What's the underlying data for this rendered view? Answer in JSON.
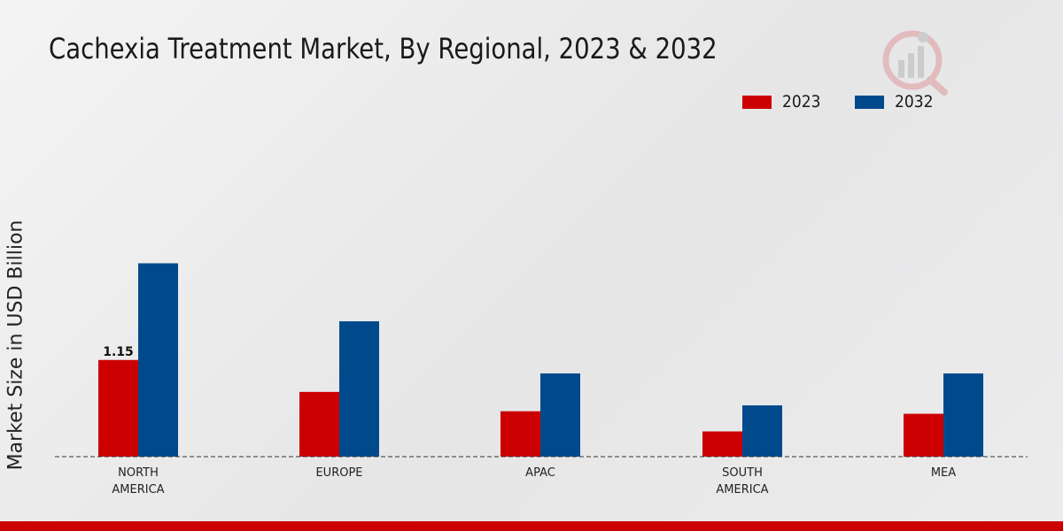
{
  "chart_data": {
    "type": "bar",
    "title": "Cachexia Treatment Market, By Regional, 2023 & 2032",
    "xlabel": "",
    "ylabel": "Market Size in USD Billion",
    "categories": [
      [
        "NORTH",
        "AMERICA"
      ],
      [
        "EUROPE"
      ],
      [
        "APAC"
      ],
      [
        "SOUTH",
        "AMERICA"
      ],
      [
        "MEA"
      ]
    ],
    "series": [
      {
        "name": "2023",
        "color": "#cc0000",
        "values": [
          1.15,
          0.77,
          0.54,
          0.3,
          0.51
        ]
      },
      {
        "name": "2032",
        "color": "#004a8c",
        "values": [
          2.3,
          1.61,
          0.99,
          0.61,
          0.99
        ]
      }
    ],
    "data_labels": [
      {
        "series": 0,
        "index": 0,
        "text": "1.15"
      }
    ],
    "ylim": [
      0,
      3.8
    ],
    "legend_position": "top-right",
    "grid": false
  }
}
